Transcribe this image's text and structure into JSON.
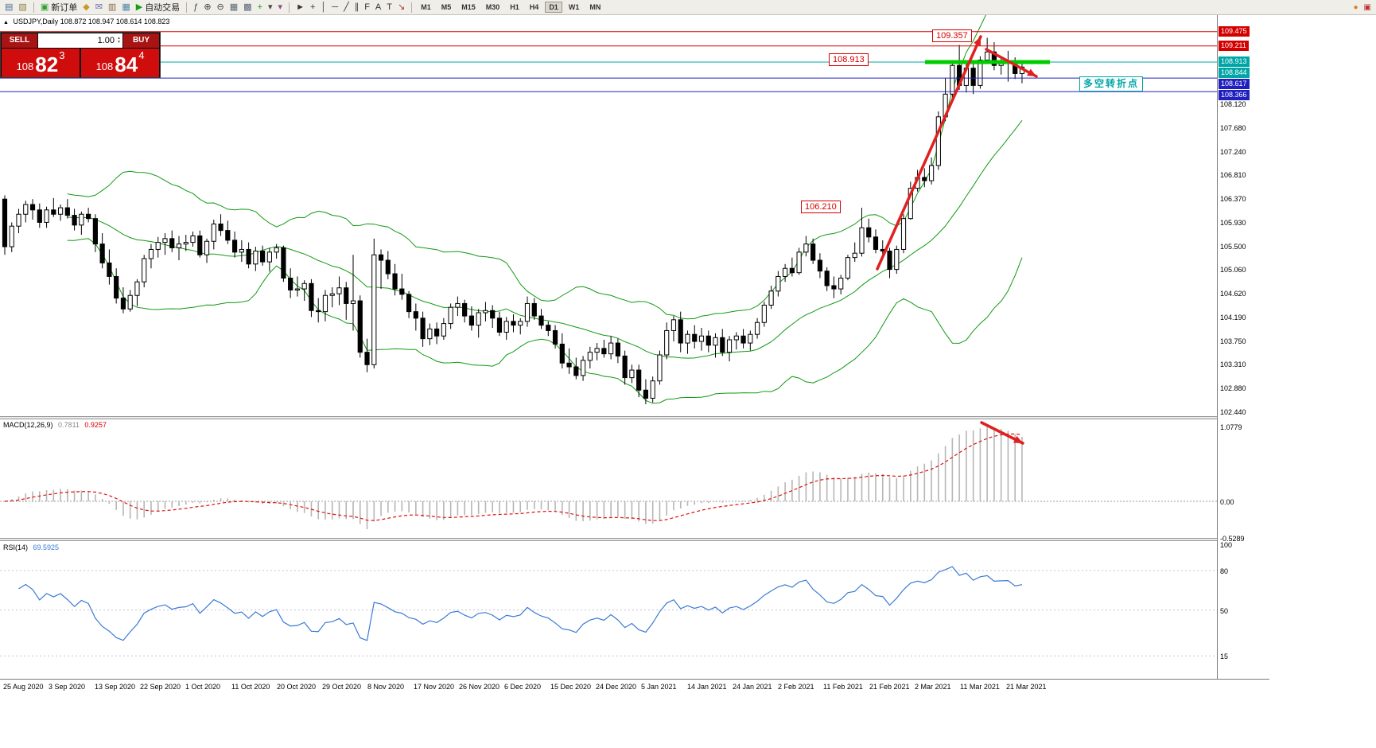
{
  "header": {
    "collapse_icon": "▲",
    "symbol_line": "USDJPY,Daily  108.872 108.947 108.614 108.823"
  },
  "order_panel": {
    "sell_label": "SELL",
    "buy_label": "BUY",
    "volume": "1.00",
    "spin_up": "▲",
    "spin_down": "▼",
    "bid": {
      "small": "108",
      "big": "82",
      "sup": "3"
    },
    "ask": {
      "small": "108",
      "big": "84",
      "sup": "4"
    }
  },
  "toolbar": {
    "groups": [
      {
        "name": "chart-windows",
        "items": [
          {
            "name": "chart-list-icon",
            "glyph": "▤",
            "color": "#4a6d96"
          },
          {
            "name": "chart-profile-icon",
            "glyph": "▧",
            "color": "#96804a"
          }
        ]
      },
      {
        "name": "trading",
        "items": [
          {
            "name": "new-order-button",
            "glyph": "▣",
            "color": "#2f9e2f",
            "label": "新订单"
          },
          {
            "name": "market-watch-icon",
            "glyph": "◆",
            "color": "#c79a2a"
          },
          {
            "name": "data-window-icon",
            "glyph": "✉",
            "color": "#6a6aa6"
          },
          {
            "name": "navigator-icon",
            "glyph": "▥",
            "color": "#8a6a4a"
          },
          {
            "name": "terminal-icon",
            "glyph": "▦",
            "color": "#4a86a6"
          },
          {
            "name": "autotrading-button",
            "glyph": "▶",
            "color": "#12a012",
            "label": "自动交易"
          }
        ]
      },
      {
        "name": "chart-tools",
        "items": [
          {
            "name": "indicator-list-icon",
            "glyph": "ƒ",
            "color": "#444444"
          },
          {
            "name": "zoom-in-icon",
            "glyph": "⊕",
            "color": "#444444"
          },
          {
            "name": "zoom-out-icon",
            "glyph": "⊖",
            "color": "#444444"
          },
          {
            "name": "tile-windows-icon",
            "glyph": "▦",
            "color": "#556677"
          },
          {
            "name": "cascade-windows-icon",
            "glyph": "▩",
            "color": "#556677"
          },
          {
            "name": "new-indicator-icon",
            "glyph": "+",
            "color": "#0a9a0a"
          },
          {
            "name": "period-dropdown-icon",
            "glyph": "▾",
            "color": "#444444"
          },
          {
            "name": "template-dropdown-icon",
            "glyph": "▾",
            "color": "#8a4a8a"
          }
        ]
      },
      {
        "name": "line-studies",
        "items": [
          {
            "name": "cursor-icon",
            "glyph": "►",
            "color": "#333333"
          },
          {
            "name": "crosshair-icon",
            "glyph": "+",
            "color": "#333333"
          },
          {
            "name": "vertical-line-icon",
            "glyph": "│",
            "color": "#333333"
          },
          {
            "name": "horizontal-line-icon",
            "glyph": "─",
            "color": "#333333"
          },
          {
            "name": "trendline-icon",
            "glyph": "╱",
            "color": "#333333"
          },
          {
            "name": "channel-icon",
            "glyph": "∥",
            "color": "#333333"
          },
          {
            "name": "fibonacci-icon",
            "glyph": "F",
            "color": "#333333"
          },
          {
            "name": "text-icon",
            "glyph": "A",
            "color": "#333333"
          },
          {
            "name": "label-icon",
            "glyph": "T",
            "color": "#333333"
          },
          {
            "name": "arrow-object-icon",
            "glyph": "↘",
            "color": "#aa3333"
          }
        ]
      }
    ],
    "timeframes": [
      "M1",
      "M5",
      "M15",
      "M30",
      "H1",
      "H4",
      "D1",
      "W1",
      "MN"
    ],
    "active_timeframe": "D1",
    "right_icons": [
      {
        "name": "alert-icon",
        "glyph": "●",
        "color": "#e08020"
      },
      {
        "name": "connection-icon",
        "glyph": "▣",
        "color": "#c03030"
      }
    ]
  },
  "indicator_labels": {
    "macd": {
      "name": "MACD(12,26,9)",
      "main": "0.7811",
      "signal": "0.9257"
    },
    "rsi": {
      "name": "RSI(14)",
      "value": "69.5925"
    }
  },
  "axes": {
    "price_ticks": [
      {
        "label": "109.475",
        "hl": "#d40000"
      },
      {
        "label": "109.211",
        "hl": "#d40000"
      },
      {
        "label": "108.913",
        "hl": "#00a5a5"
      },
      {
        "label": "108.844",
        "hl": "#00a5a5"
      },
      {
        "label": "108.617",
        "hl": "#2020c0"
      },
      {
        "label": "108.366",
        "hl": "#2020c0"
      },
      {
        "label": "108.120"
      },
      {
        "label": "107.680"
      },
      {
        "label": "107.240"
      },
      {
        "label": "106.810"
      },
      {
        "label": "106.370"
      },
      {
        "label": "105.930"
      },
      {
        "label": "105.500"
      },
      {
        "label": "105.060"
      },
      {
        "label": "104.620"
      },
      {
        "label": "104.190"
      },
      {
        "label": "103.750"
      },
      {
        "label": "103.310"
      },
      {
        "label": "102.880"
      },
      {
        "label": "102.440"
      }
    ],
    "macd_ticks": [
      "1.0779",
      "0.00",
      "-0.5289"
    ],
    "rsi_ticks": [
      "100",
      "80",
      "50",
      "15"
    ],
    "dates": [
      "25 Aug 2020",
      "3 Sep 2020",
      "13 Sep 2020",
      "22 Sep 2020",
      "1 Oct 2020",
      "11 Oct 2020",
      "20 Oct 2020",
      "29 Oct 2020",
      "8 Nov 2020",
      "17 Nov 2020",
      "26 Nov 2020",
      "6 Dec 2020",
      "15 Dec 2020",
      "24 Dec 2020",
      "5 Jan 2021",
      "14 Jan 2021",
      "24 Jan 2021",
      "2 Feb 2021",
      "11 Feb 2021",
      "21 Feb 2021",
      "2 Mar 2021",
      "11 Mar 2021",
      "21 Mar 2021"
    ]
  },
  "chart_data": {
    "type": "candlestick",
    "symbol": "USDJPY",
    "timeframe": "Daily",
    "ohlc_format": [
      "open",
      "high",
      "low",
      "close"
    ],
    "ohlc": [
      [
        106.38,
        106.45,
        105.35,
        105.5
      ],
      [
        105.5,
        105.95,
        105.4,
        105.88
      ],
      [
        105.88,
        106.2,
        105.75,
        106.1
      ],
      [
        106.1,
        106.35,
        105.95,
        106.28
      ],
      [
        106.28,
        106.38,
        106.0,
        106.18
      ],
      [
        106.18,
        106.3,
        105.85,
        105.95
      ],
      [
        105.95,
        106.24,
        105.85,
        106.18
      ],
      [
        106.18,
        106.4,
        106.05,
        106.1
      ],
      [
        106.1,
        106.28,
        105.98,
        106.22
      ],
      [
        106.22,
        106.38,
        106.02,
        106.08
      ],
      [
        106.08,
        106.2,
        105.8,
        105.9
      ],
      [
        105.9,
        106.15,
        105.72,
        106.1
      ],
      [
        106.1,
        106.22,
        105.95,
        106.02
      ],
      [
        106.02,
        106.1,
        105.4,
        105.55
      ],
      [
        105.55,
        105.75,
        105.1,
        105.2
      ],
      [
        105.2,
        105.45,
        104.8,
        104.95
      ],
      [
        104.95,
        105.1,
        104.45,
        104.55
      ],
      [
        104.55,
        104.75,
        104.27,
        104.35
      ],
      [
        104.35,
        104.7,
        104.3,
        104.6
      ],
      [
        104.6,
        104.9,
        104.4,
        104.85
      ],
      [
        104.85,
        105.35,
        104.75,
        105.28
      ],
      [
        105.28,
        105.55,
        105.1,
        105.45
      ],
      [
        105.45,
        105.68,
        105.3,
        105.58
      ],
      [
        105.58,
        105.75,
        105.35,
        105.65
      ],
      [
        105.65,
        105.8,
        105.4,
        105.48
      ],
      [
        105.48,
        105.7,
        105.25,
        105.55
      ],
      [
        105.55,
        105.72,
        105.42,
        105.58
      ],
      [
        105.58,
        105.78,
        105.5,
        105.7
      ],
      [
        105.7,
        105.8,
        105.3,
        105.35
      ],
      [
        105.35,
        105.65,
        105.2,
        105.6
      ],
      [
        105.6,
        106.0,
        105.45,
        105.92
      ],
      [
        105.92,
        106.1,
        105.7,
        105.8
      ],
      [
        105.8,
        105.98,
        105.55,
        105.62
      ],
      [
        105.62,
        105.78,
        105.3,
        105.4
      ],
      [
        105.4,
        105.62,
        105.22,
        105.45
      ],
      [
        105.45,
        105.58,
        105.1,
        105.18
      ],
      [
        105.18,
        105.5,
        105.05,
        105.42
      ],
      [
        105.42,
        105.52,
        105.15,
        105.22
      ],
      [
        105.22,
        105.48,
        105.04,
        105.4
      ],
      [
        105.4,
        105.55,
        105.28,
        105.48
      ],
      [
        105.48,
        105.52,
        104.85,
        104.92
      ],
      [
        104.92,
        105.1,
        104.55,
        104.7
      ],
      [
        104.7,
        104.95,
        104.58,
        104.72
      ],
      [
        104.72,
        104.88,
        104.5,
        104.82
      ],
      [
        104.82,
        104.9,
        104.2,
        104.32
      ],
      [
        104.32,
        104.55,
        104.1,
        104.3
      ],
      [
        104.3,
        104.7,
        104.12,
        104.6
      ],
      [
        104.6,
        104.75,
        104.38,
        104.63
      ],
      [
        104.63,
        104.95,
        104.42,
        104.74
      ],
      [
        104.74,
        104.85,
        104.15,
        104.45
      ],
      [
        104.45,
        105.35,
        103.95,
        104.5
      ],
      [
        104.5,
        104.6,
        103.45,
        103.55
      ],
      [
        103.55,
        103.8,
        103.18,
        103.32
      ],
      [
        103.32,
        105.65,
        103.25,
        105.35
      ],
      [
        105.35,
        105.45,
        104.72,
        105.25
      ],
      [
        105.25,
        105.42,
        104.9,
        105.0
      ],
      [
        105.0,
        105.18,
        104.6,
        104.72
      ],
      [
        104.72,
        105.0,
        104.52,
        104.62
      ],
      [
        104.62,
        104.68,
        104.18,
        104.3
      ],
      [
        104.3,
        104.45,
        103.95,
        104.18
      ],
      [
        104.18,
        104.3,
        103.65,
        103.8
      ],
      [
        103.8,
        104.08,
        103.68,
        103.98
      ],
      [
        103.98,
        104.1,
        103.7,
        103.85
      ],
      [
        103.85,
        104.18,
        103.78,
        104.08
      ],
      [
        104.08,
        104.45,
        103.98,
        104.38
      ],
      [
        104.38,
        104.58,
        104.22,
        104.45
      ],
      [
        104.45,
        104.52,
        104.1,
        104.22
      ],
      [
        104.22,
        104.4,
        103.95,
        104.05
      ],
      [
        104.05,
        104.35,
        103.82,
        104.28
      ],
      [
        104.28,
        104.48,
        104.12,
        104.32
      ],
      [
        104.32,
        104.42,
        104.0,
        104.18
      ],
      [
        104.18,
        104.3,
        103.85,
        103.92
      ],
      [
        103.92,
        104.2,
        103.78,
        104.12
      ],
      [
        104.12,
        104.25,
        103.92,
        104.05
      ],
      [
        104.05,
        104.18,
        103.88,
        104.12
      ],
      [
        104.12,
        104.58,
        104.02,
        104.45
      ],
      [
        104.45,
        104.55,
        104.15,
        104.22
      ],
      [
        104.22,
        104.35,
        103.98,
        104.05
      ],
      [
        104.05,
        104.12,
        103.85,
        103.95
      ],
      [
        103.95,
        104.05,
        103.62,
        103.7
      ],
      [
        103.7,
        103.9,
        103.25,
        103.35
      ],
      [
        103.35,
        103.62,
        103.15,
        103.28
      ],
      [
        103.28,
        103.45,
        103.05,
        103.12
      ],
      [
        103.12,
        103.48,
        103.02,
        103.4
      ],
      [
        103.4,
        103.65,
        103.25,
        103.55
      ],
      [
        103.55,
        103.72,
        103.4,
        103.62
      ],
      [
        103.62,
        103.78,
        103.45,
        103.52
      ],
      [
        103.52,
        103.85,
        103.42,
        103.72
      ],
      [
        103.72,
        103.8,
        103.35,
        103.48
      ],
      [
        103.48,
        103.58,
        102.95,
        103.08
      ],
      [
        103.08,
        103.32,
        102.98,
        103.22
      ],
      [
        103.22,
        103.32,
        102.72,
        102.85
      ],
      [
        102.85,
        103.05,
        102.59,
        102.7
      ],
      [
        102.7,
        103.1,
        102.62,
        103.02
      ],
      [
        103.02,
        103.58,
        102.95,
        103.5
      ],
      [
        103.5,
        104.1,
        103.42,
        103.95
      ],
      [
        103.95,
        104.22,
        103.75,
        104.15
      ],
      [
        104.15,
        104.3,
        103.55,
        103.72
      ],
      [
        103.72,
        103.95,
        103.52,
        103.88
      ],
      [
        103.88,
        104.05,
        103.62,
        103.75
      ],
      [
        103.75,
        104.0,
        103.58,
        103.85
      ],
      [
        103.85,
        103.95,
        103.55,
        103.68
      ],
      [
        103.68,
        103.9,
        103.45,
        103.82
      ],
      [
        103.82,
        103.98,
        103.48,
        103.55
      ],
      [
        103.55,
        103.85,
        103.38,
        103.78
      ],
      [
        103.78,
        103.92,
        103.6,
        103.85
      ],
      [
        103.85,
        103.98,
        103.62,
        103.72
      ],
      [
        103.72,
        103.95,
        103.58,
        103.88
      ],
      [
        103.88,
        104.18,
        103.8,
        104.1
      ],
      [
        104.1,
        104.48,
        104.02,
        104.42
      ],
      [
        104.42,
        104.78,
        104.35,
        104.68
      ],
      [
        104.68,
        105.05,
        104.58,
        104.95
      ],
      [
        104.95,
        105.18,
        104.85,
        105.1
      ],
      [
        105.1,
        105.3,
        104.95,
        105.02
      ],
      [
        105.02,
        105.48,
        104.98,
        105.4
      ],
      [
        105.4,
        105.7,
        105.32,
        105.55
      ],
      [
        105.55,
        105.65,
        105.18,
        105.25
      ],
      [
        105.25,
        105.38,
        104.92,
        105.05
      ],
      [
        105.05,
        105.12,
        104.68,
        104.78
      ],
      [
        104.78,
        104.95,
        104.55,
        104.72
      ],
      [
        104.72,
        104.98,
        104.62,
        104.92
      ],
      [
        104.92,
        105.35,
        104.88,
        105.3
      ],
      [
        105.3,
        105.58,
        105.22,
        105.38
      ],
      [
        105.38,
        106.22,
        105.32,
        105.85
      ],
      [
        105.85,
        106.02,
        105.58,
        105.68
      ],
      [
        105.68,
        105.82,
        105.38,
        105.45
      ],
      [
        105.45,
        105.62,
        105.28,
        105.42
      ],
      [
        105.42,
        105.48,
        104.92,
        105.08
      ],
      [
        105.08,
        105.52,
        105.0,
        105.45
      ],
      [
        105.45,
        106.1,
        105.38,
        106.02
      ],
      [
        106.02,
        106.7,
        106.0,
        106.58
      ],
      [
        106.58,
        106.92,
        106.52,
        106.78
      ],
      [
        106.78,
        106.95,
        106.6,
        106.72
      ],
      [
        106.72,
        107.15,
        106.65,
        107.0
      ],
      [
        107.0,
        108.0,
        106.92,
        107.9
      ],
      [
        107.9,
        108.62,
        107.82,
        108.32
      ],
      [
        108.32,
        108.95,
        108.22,
        108.85
      ],
      [
        108.85,
        109.23,
        108.4,
        108.48
      ],
      [
        108.48,
        108.92,
        108.35,
        108.8
      ],
      [
        108.8,
        108.88,
        108.32,
        108.48
      ],
      [
        108.48,
        109.02,
        108.42,
        108.95
      ],
      [
        108.95,
        109.36,
        108.88,
        109.1
      ],
      [
        109.1,
        109.28,
        108.76,
        108.85
      ],
      [
        108.85,
        109.02,
        108.68,
        108.9
      ],
      [
        108.9,
        109.12,
        108.55,
        108.92
      ],
      [
        108.92,
        109.0,
        108.6,
        108.7
      ],
      [
        108.7,
        108.95,
        108.52,
        108.82
      ]
    ],
    "overlays": {
      "bollinger": {
        "period": 20,
        "deviation": 2,
        "color": "#119911"
      },
      "hlines": [
        {
          "price": 109.475,
          "color": "#d40000"
        },
        {
          "price": 109.211,
          "color": "#d40000"
        },
        {
          "price": 108.913,
          "color": "#00a5a5"
        },
        {
          "price": 108.617,
          "color": "#2020c0"
        },
        {
          "price": 108.366,
          "color": "#2020c0"
        }
      ],
      "support_segment": {
        "price": 108.913,
        "color": "#00cc00"
      }
    },
    "annotations": [
      {
        "text": "109.357",
        "color": "#d40000"
      },
      {
        "text": "108.913",
        "color": "#d40000"
      },
      {
        "text": "106.210",
        "color": "#d40000"
      },
      {
        "text": "多空转折点",
        "color": "#00a5a5"
      }
    ],
    "macd": {
      "fast": 12,
      "slow": 26,
      "signal": 9,
      "current_main": 0.7811,
      "current_signal": 0.9257,
      "scale_max": 1.0779,
      "scale_min": -0.5289
    },
    "rsi": {
      "period": 14,
      "current": 69.5925,
      "scale": [
        0,
        100
      ]
    }
  }
}
